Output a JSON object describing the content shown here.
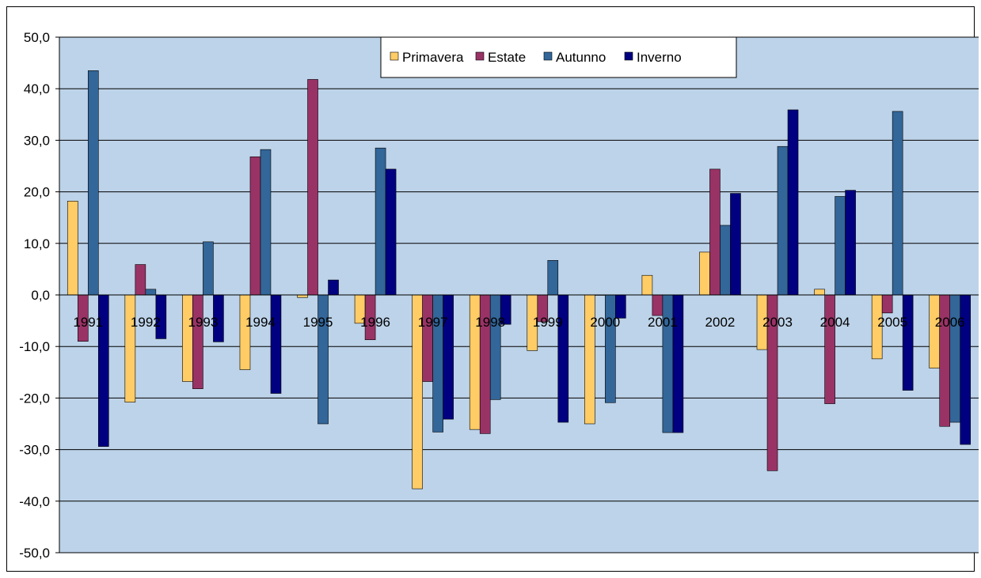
{
  "chart_data": {
    "type": "bar",
    "categories": [
      "1991",
      "1992",
      "1993",
      "1994",
      "1995",
      "1996",
      "1997",
      "1998",
      "1999",
      "2000",
      "2001",
      "2002",
      "2003",
      "2004",
      "2005",
      "2006"
    ],
    "series": [
      {
        "name": "Primavera",
        "color": "#FFCC66",
        "values": [
          18.2,
          -20.8,
          -16.8,
          -14.5,
          -0.5,
          -5.5,
          -37.6,
          -26.1,
          -10.8,
          -25.0,
          3.8,
          8.3,
          -10.6,
          1.1,
          -12.4,
          -14.2
        ]
      },
      {
        "name": "Estate",
        "color": "#993366",
        "values": [
          -9.0,
          5.9,
          -18.2,
          26.8,
          41.8,
          -8.7,
          -16.8,
          -26.9,
          -5.2,
          0.0,
          -4.0,
          24.4,
          -34.1,
          -21.1,
          -3.5,
          -25.5
        ]
      },
      {
        "name": "Autunno",
        "color": "#336699",
        "values": [
          43.5,
          1.1,
          10.3,
          28.2,
          -25.0,
          28.5,
          -26.6,
          -20.3,
          6.7,
          -20.9,
          -26.7,
          13.5,
          28.8,
          19.1,
          35.6,
          -24.7
        ]
      },
      {
        "name": "Inverno",
        "color": "#000080",
        "values": [
          -29.4,
          -8.5,
          -9.1,
          -19.1,
          2.9,
          24.4,
          -24.1,
          -5.7,
          -24.7,
          -4.5,
          -26.7,
          19.7,
          35.9,
          20.3,
          -18.5,
          -29.0
        ]
      }
    ],
    "yticks": [
      "50,0",
      "40,0",
      "30,0",
      "20,0",
      "10,0",
      "0,0",
      "-10,0",
      "-20,0",
      "-30,0",
      "-40,0",
      "-50,0"
    ],
    "ylim": [
      -50,
      50
    ],
    "grid": true,
    "legend": "top-center",
    "plot_background": "#BDD3E9"
  }
}
